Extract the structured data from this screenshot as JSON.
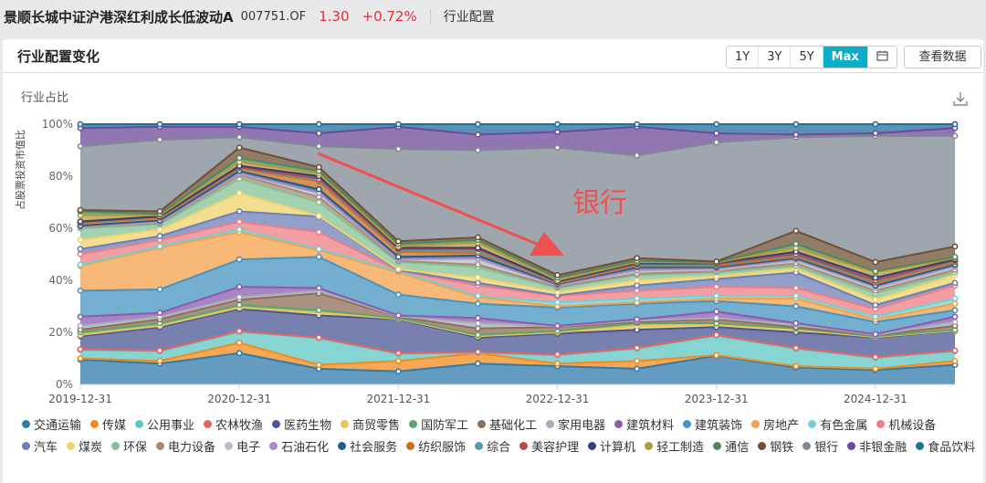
{
  "header": {
    "fund_name": "景顺长城中证沪港深红利成长低波动A",
    "fund_code": "007751.OF",
    "price": "1.30",
    "change": "+0.72%",
    "section": "行业配置"
  },
  "card": {
    "title": "行业配置变化",
    "range_buttons": [
      "1Y",
      "3Y",
      "5Y",
      "Max"
    ],
    "active_range": "Max",
    "calendar_icon": "calendar-icon",
    "view_data_label": "查看数据",
    "download_icon": "download-icon"
  },
  "chart_data": {
    "type": "area",
    "stacked": true,
    "title": "行业占比",
    "ylabel": "占股票投资市值比",
    "ylim": [
      0,
      100
    ],
    "yticks": [
      "0%",
      "20%",
      "40%",
      "60%",
      "80%",
      "100%"
    ],
    "xtick_labels": [
      "2019-12-31",
      "2020-12-31",
      "2021-12-31",
      "2022-12-31",
      "2023-12-31",
      "2024-12-31"
    ],
    "x": [
      "2019-12-31",
      "2020-06-30",
      "2020-12-31",
      "2021-06-30",
      "2021-12-31",
      "2022-06-30",
      "2022-12-31",
      "2023-06-30",
      "2023-12-31",
      "2024-06-30",
      "2024-12-31",
      "2025-06-30"
    ],
    "legend_placement": "bottom",
    "annotation": {
      "text": "银行",
      "color": "#f05050",
      "arrow": true
    },
    "series": [
      {
        "name": "交通运输",
        "color": "#2f7bab",
        "values": [
          9.5,
          8,
          12,
          6,
          5,
          8,
          7,
          6,
          11,
          6.5,
          5.5,
          7.5
        ]
      },
      {
        "name": "传媒",
        "color": "#f28b1e",
        "values": [
          0.5,
          1,
          4,
          1.5,
          4,
          4,
          1,
          3,
          0.2,
          0.5,
          0.5,
          1.5
        ]
      },
      {
        "name": "公用事业",
        "color": "#5fc7c4",
        "values": [
          3.2,
          3.7,
          4.2,
          10.2,
          2.7,
          0.2,
          3.2,
          4.7,
          7.5,
          6.7,
          4.2,
          3.7
        ]
      },
      {
        "name": "农林牧渔",
        "color": "#e36464",
        "values": [
          0.3,
          0.3,
          0.3,
          0.3,
          0.3,
          0.3,
          0.3,
          0.3,
          0.3,
          0.3,
          0.3,
          0.3
        ]
      },
      {
        "name": "医药生物",
        "color": "#4b5596",
        "values": [
          5,
          9,
          8.5,
          8.5,
          13,
          5.5,
          8,
          7,
          3,
          6,
          7.5,
          7.5
        ]
      },
      {
        "name": "商贸零售",
        "color": "#e8c45a",
        "values": [
          0.5,
          0.5,
          0.5,
          1,
          0.2,
          0.5,
          0.5,
          1.5,
          1,
          1,
          0.2,
          0.2
        ]
      },
      {
        "name": "国防军工",
        "color": "#5fa46c",
        "values": [
          1,
          1,
          1,
          1,
          0.3,
          0.5,
          0.5,
          1,
          0.5,
          0.5,
          0.3,
          0.3
        ]
      },
      {
        "name": "基础化工",
        "color": "#8f6e55",
        "values": [
          1,
          1.5,
          2,
          6.5,
          0.5,
          2.5,
          1.5,
          0.5,
          1.5,
          0.5,
          0.3,
          1.5
        ]
      },
      {
        "name": "家用电器",
        "color": "#a6aeb8",
        "values": [
          1.5,
          1,
          1,
          1,
          0.2,
          2,
          0.3,
          0.5,
          0.5,
          1,
          0.2,
          1.5
        ]
      },
      {
        "name": "建筑材料",
        "color": "#8a5bb0",
        "values": [
          3.5,
          1.5,
          4,
          1,
          0.3,
          2,
          0.2,
          0.5,
          2.5,
          0.5,
          0.3,
          2
        ]
      },
      {
        "name": "建筑装饰",
        "color": "#4694c0",
        "values": [
          10,
          9,
          10.5,
          12,
          8,
          5.5,
          7,
          6,
          4,
          6.5,
          4.7,
          2.5
        ]
      },
      {
        "name": "房地产",
        "color": "#f5a04a",
        "values": [
          9.5,
          16,
          10.5,
          2.5,
          8.5,
          2.5,
          0.5,
          0.5,
          1,
          3,
          1,
          2.5
        ]
      },
      {
        "name": "有色金属",
        "color": "#74d0d0",
        "values": [
          0.5,
          0.5,
          1,
          0.5,
          0.5,
          0.5,
          1.5,
          1.5,
          1,
          1,
          1,
          2
        ]
      },
      {
        "name": "机械设备",
        "color": "#ec7f85",
        "values": [
          4,
          2.5,
          3,
          6.5,
          0.2,
          4,
          2.5,
          3,
          3.5,
          3,
          3,
          5
        ]
      },
      {
        "name": "汽车",
        "color": "#6d7fb6",
        "values": [
          2,
          1.5,
          4,
          6,
          0.2,
          1,
          0.2,
          2,
          3,
          6,
          1.5,
          1
        ]
      },
      {
        "name": "煤炭",
        "color": "#f0d36e",
        "values": [
          3.5,
          2.5,
          7,
          0.2,
          0.3,
          2,
          1.3,
          2,
          1,
          1.5,
          2,
          3
        ]
      },
      {
        "name": "环保",
        "color": "#85c196",
        "values": [
          4.5,
          2,
          5.5,
          5.3,
          2.8,
          4,
          1.5,
          2,
          1.5,
          1,
          2.5,
          1
        ]
      },
      {
        "name": "电力设备",
        "color": "#a88b74",
        "values": [
          0.5,
          0.5,
          1.5,
          2,
          0.5,
          1,
          0.5,
          0.5,
          0.5,
          1,
          1,
          1
        ]
      },
      {
        "name": "电子",
        "color": "#b8bec7",
        "values": [
          0.2,
          0.5,
          0.5,
          1.5,
          0.5,
          2,
          0.5,
          1,
          0.5,
          1,
          1,
          1
        ]
      },
      {
        "name": "石油石化",
        "color": "#a889c7",
        "values": [
          0.1,
          0.2,
          0.2,
          0.2,
          0.2,
          0.5,
          0.2,
          0.5,
          0.5,
          0.5,
          0.5,
          0.5
        ]
      },
      {
        "name": "社会服务",
        "color": "#1f5e8a",
        "values": [
          0.2,
          0.3,
          0.8,
          1.3,
          0.8,
          1,
          0.3,
          1,
          0.5,
          0.5,
          0.5,
          0.5
        ]
      },
      {
        "name": "纺织服饰",
        "color": "#cf6c17",
        "values": [
          1,
          1,
          1,
          3,
          2,
          1,
          0.3,
          0.5,
          0.5,
          0.5,
          1,
          1
        ]
      },
      {
        "name": "综合",
        "color": "#5a9bab",
        "values": [
          0.2,
          0.2,
          0.2,
          0.5,
          0.5,
          0.5,
          0.2,
          0.5,
          0.5,
          0.5,
          0.5,
          0.3
        ]
      },
      {
        "name": "美容护理",
        "color": "#b84a4a",
        "values": [
          0.2,
          0.2,
          0.3,
          0.5,
          0.5,
          1,
          0.3,
          0.3,
          0.3,
          0.5,
          0.5,
          0.3
        ]
      },
      {
        "name": "计算机",
        "color": "#383f73",
        "values": [
          0.2,
          0.2,
          0.5,
          1,
          0.5,
          0.5,
          0.3,
          0.3,
          0.3,
          1,
          1,
          0.4
        ]
      },
      {
        "name": "轻工制造",
        "color": "#b59a3d",
        "values": [
          2.4,
          0.4,
          1.5,
          1,
          0.5,
          2,
          0.4,
          0.4,
          0.2,
          1.5,
          2,
          0.5
        ]
      },
      {
        "name": "通信",
        "color": "#4d8a5a",
        "values": [
          1.5,
          0.5,
          1.5,
          1,
          1,
          1,
          1,
          0.5,
          0.2,
          1.5,
          0.5,
          0.5
        ]
      },
      {
        "name": "钢铁",
        "color": "#6e5036",
        "values": [
          0.5,
          1,
          4,
          1.5,
          1,
          1,
          1,
          1,
          0.2,
          5,
          3.5,
          4
        ]
      },
      {
        "name": "银行",
        "color": "#7f8893",
        "values": [
          24.5,
          27.5,
          4,
          8,
          35.5,
          33.5,
          49,
          39.5,
          45.8,
          36,
          48.5,
          42.5
        ]
      },
      {
        "name": "非银金融",
        "color": "#6b4a98",
        "values": [
          7,
          5,
          4,
          5,
          8.5,
          6,
          6,
          11,
          3.5,
          1,
          1,
          3
        ]
      },
      {
        "name": "食品饮料",
        "color": "#1f6f9c",
        "values": [
          1.5,
          1,
          1,
          3.5,
          1,
          4,
          3,
          1,
          3.5,
          4,
          3.5,
          1.5
        ]
      }
    ]
  }
}
